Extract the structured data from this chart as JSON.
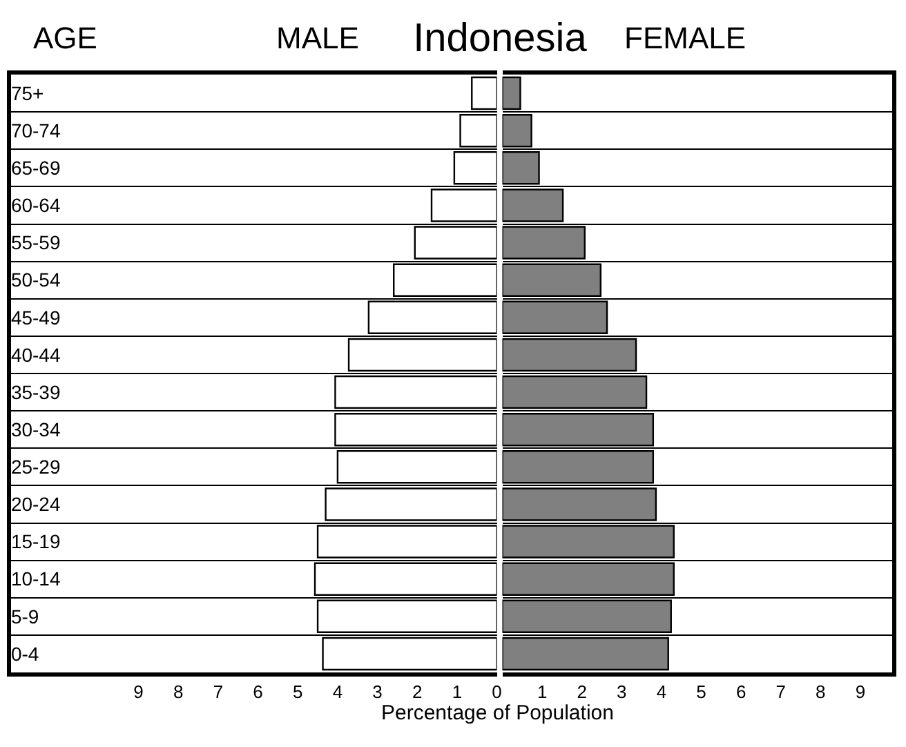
{
  "chart_data": [
    {
      "type": "bar",
      "orientation": "horizontal",
      "title": "Indonesia",
      "ylabel": "AGE",
      "xlabel": "Percentage of Population",
      "categories": [
        "75+",
        "70-74",
        "65-69",
        "60-64",
        "55-59",
        "50-54",
        "45-49",
        "40-44",
        "35-39",
        "30-34",
        "25-29",
        "20-24",
        "15-19",
        "10-14",
        "5-9",
        "0-4"
      ],
      "series": [
        {
          "name": "MALE",
          "color": "#ffffff",
          "values": [
            0.63,
            0.92,
            1.07,
            1.64,
            2.06,
            2.59,
            3.22,
            3.72,
            4.06,
            4.06,
            4.0,
            4.3,
            4.5,
            4.57,
            4.5,
            4.37
          ]
        }
      ],
      "xlim": [
        12.2,
        0
      ],
      "xticks": [
        9,
        8,
        7,
        6,
        5,
        4,
        3,
        2,
        1,
        0
      ],
      "grid": "y"
    },
    {
      "type": "bar",
      "orientation": "horizontal",
      "series": [
        {
          "name": "FEMALE",
          "color": "#808080",
          "values": [
            0.45,
            0.73,
            0.92,
            1.52,
            2.07,
            2.47,
            2.63,
            3.36,
            3.62,
            3.79,
            3.79,
            3.86,
            4.31,
            4.31,
            4.24,
            4.17
          ]
        }
      ],
      "xlim": [
        0,
        9.8
      ],
      "xticks": [
        1,
        2,
        3,
        4,
        5,
        6,
        7,
        8,
        9
      ],
      "grid": "y",
      "tick_labels": "x"
    }
  ]
}
